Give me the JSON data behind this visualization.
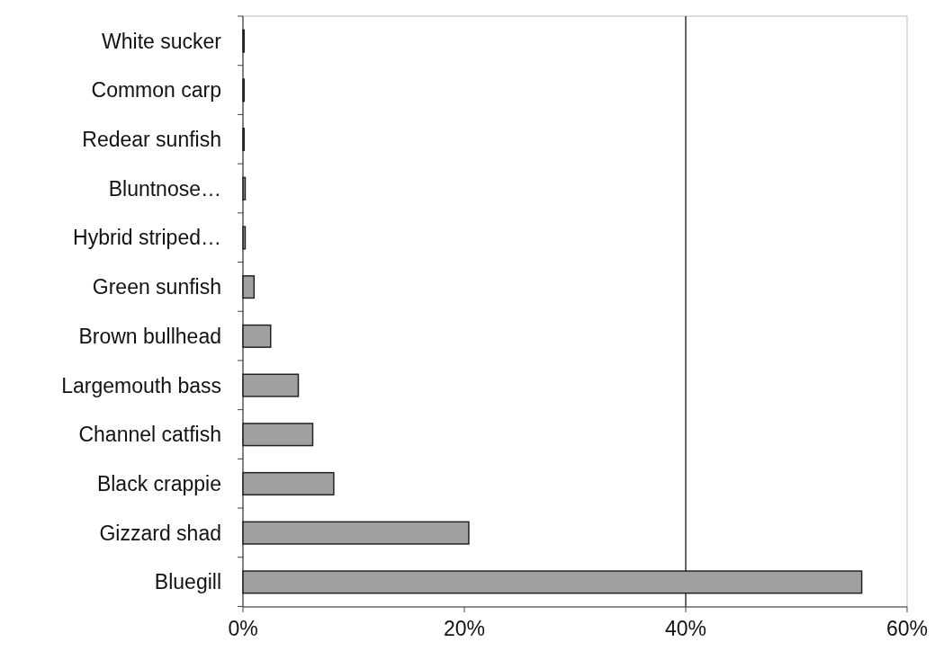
{
  "chart_data": {
    "type": "bar",
    "orientation": "horizontal",
    "categories": [
      "White sucker",
      "Common carp",
      "Redear sunfish",
      "Bluntnose…",
      "Hybrid striped…",
      "Green sunfish",
      "Brown bullhead",
      "Largemouth bass",
      "Channel catfish",
      "Black crappie",
      "Gizzard shad",
      "Bluegill"
    ],
    "values": [
      0.1,
      0.1,
      0.1,
      0.2,
      0.2,
      1.0,
      2.5,
      5.0,
      6.3,
      8.2,
      20.4,
      55.9
    ],
    "color": "#a0a0a0",
    "xlim": [
      0,
      60
    ],
    "xticks": [
      {
        "value": 0,
        "label": "0%"
      },
      {
        "value": 20,
        "label": "20%"
      },
      {
        "value": 40,
        "label": "40%"
      },
      {
        "value": 60,
        "label": "60%"
      }
    ],
    "ref_lines": [
      {
        "axis": "x",
        "value": 40,
        "color": "#000000"
      }
    ]
  }
}
